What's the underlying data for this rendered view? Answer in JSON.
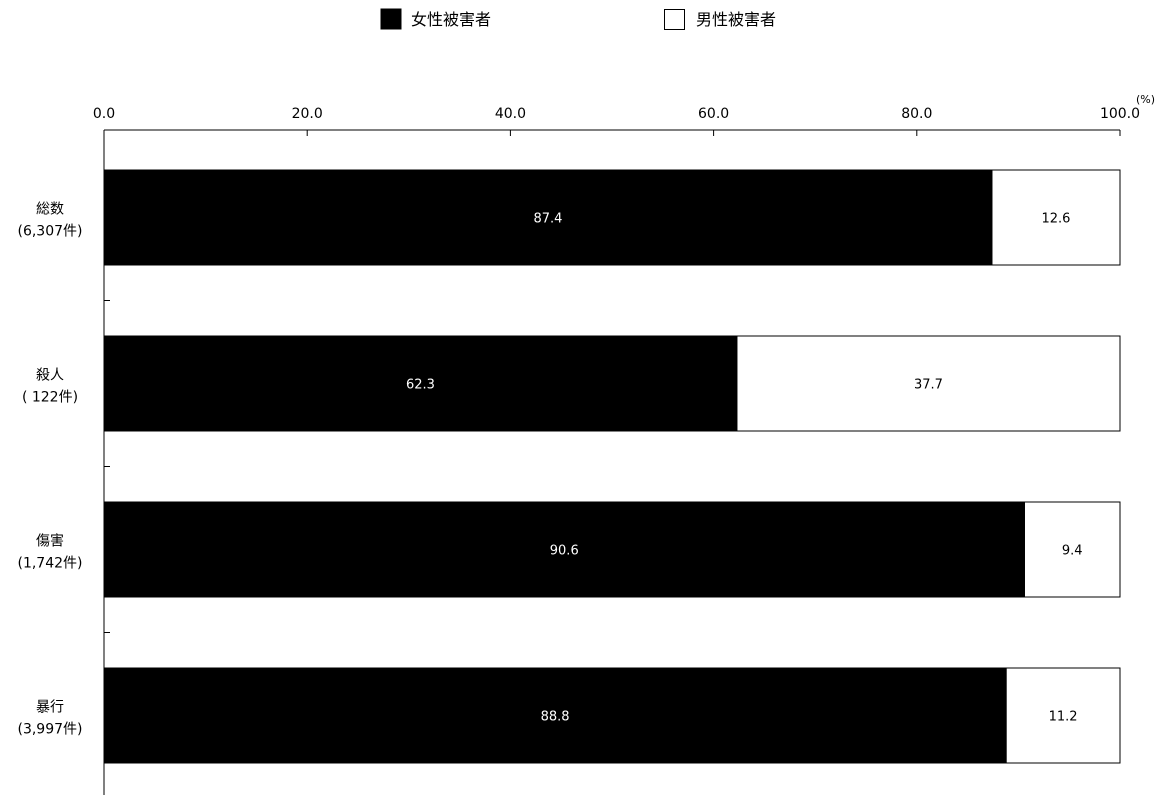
{
  "legend": [
    {
      "label": "女性被害者",
      "color": "#000000"
    },
    {
      "label": "男性被害者",
      "color": "#ffffff"
    }
  ],
  "unit_label": "(%)",
  "chart_data": {
    "type": "bar",
    "orientation": "horizontal",
    "stacked": true,
    "xlim": [
      0,
      100
    ],
    "ticks": [
      "0.0",
      "20.0",
      "40.0",
      "60.0",
      "80.0",
      "100.0"
    ],
    "tick_values": [
      0,
      20,
      40,
      60,
      80,
      100
    ],
    "categories": [
      {
        "line1": "総数",
        "line2": "(6,307件)"
      },
      {
        "line1": "殺人",
        "line2": "( 122件)"
      },
      {
        "line1": "傷害",
        "line2": "(1,742件)"
      },
      {
        "line1": "暴行",
        "line2": "(3,997件)"
      }
    ],
    "series": [
      {
        "name": "女性被害者",
        "color": "#000000",
        "label_color": "#ffffff",
        "values": [
          87.4,
          62.3,
          90.6,
          88.8
        ],
        "labels": [
          "87.4",
          "62.3",
          "90.6",
          "88.8"
        ]
      },
      {
        "name": "男性被害者",
        "color": "#ffffff",
        "label_color": "#000000",
        "values": [
          12.6,
          37.7,
          9.4,
          11.2
        ],
        "labels": [
          "12.6",
          "37.7",
          "9.4",
          "11.2"
        ]
      }
    ],
    "legend_position": "top",
    "grid": false
  }
}
